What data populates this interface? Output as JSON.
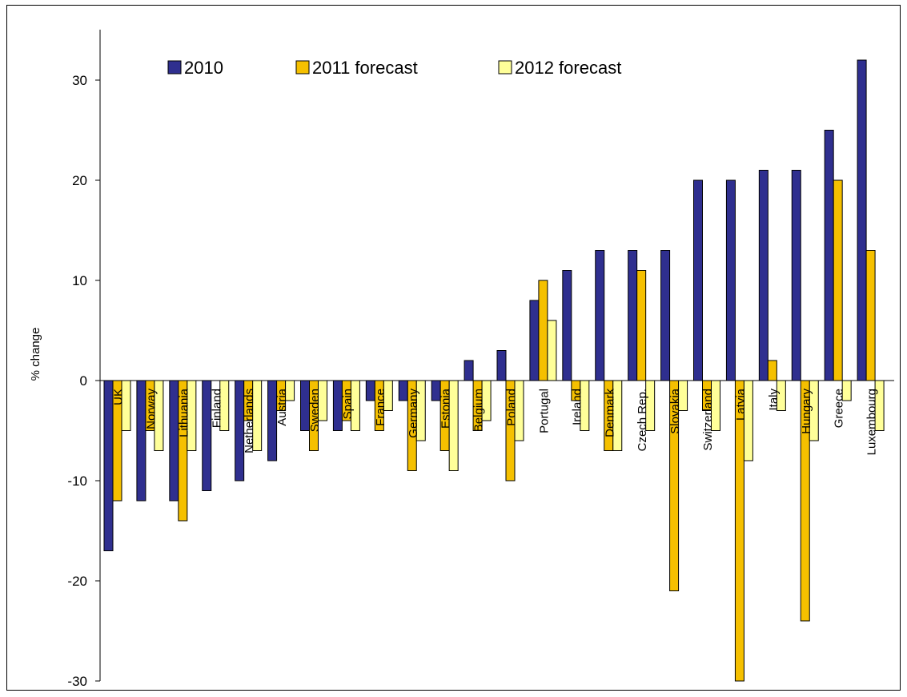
{
  "chart_data": {
    "type": "bar",
    "title": "",
    "xlabel": "",
    "ylabel": "% change",
    "ylim": [
      -30,
      35
    ],
    "yticks": [
      -30,
      -20,
      -10,
      0,
      10,
      20,
      30
    ],
    "grid": false,
    "legend_position": "top",
    "categories": [
      "UK",
      "Norway",
      "Lithuania",
      "Finland",
      "Netherlands",
      "Austria",
      "Sweden",
      "Spain",
      "France",
      "Germany",
      "Estonia",
      "Belgium",
      "Poland",
      "Portugal",
      "Ireland",
      "Denmark",
      "Czech Rep.",
      "Slovakia",
      "Switzerland",
      "Latvia",
      "Italy",
      "Hungary",
      "Greece",
      "Luxembourg"
    ],
    "series": [
      {
        "name": "2010",
        "color": "#2f2f8f",
        "values": [
          -17,
          -12,
          -12,
          -11,
          -10,
          -8,
          -5,
          -5,
          -2,
          -2,
          -2,
          2,
          3,
          8,
          11,
          13,
          13,
          13,
          20,
          20,
          21,
          21,
          25,
          32
        ]
      },
      {
        "name": "2011 forecast",
        "color": "#f5c000",
        "values": [
          -12,
          -5,
          -14,
          0,
          -4,
          -3,
          -7,
          -4,
          -5,
          -9,
          -7,
          -5,
          -10,
          10,
          -2,
          -7,
          11,
          -21,
          -3,
          -30,
          2,
          -24,
          20,
          13
        ]
      },
      {
        "name": "2012 forecast",
        "color": "#ffff99",
        "values": [
          -5,
          -7,
          -7,
          -5,
          -7,
          -2,
          -4,
          -5,
          -3,
          -6,
          -9,
          -4,
          -6,
          6,
          -5,
          -7,
          -5,
          -3,
          -5,
          -8,
          -3,
          -6,
          -2,
          -5
        ]
      }
    ]
  }
}
